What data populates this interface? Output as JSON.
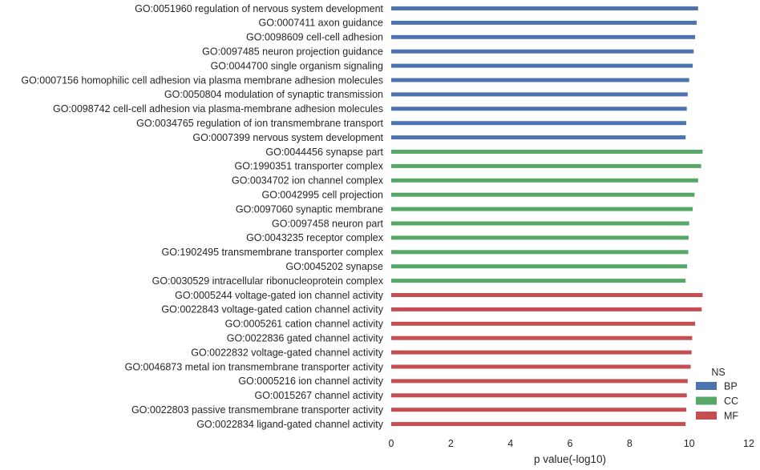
{
  "chart_data": {
    "type": "bar",
    "orientation": "horizontal",
    "xlabel": "p value(-log10)",
    "xlim": [
      0,
      12
    ],
    "xticks": [
      "0",
      "2",
      "4",
      "6",
      "8",
      "10",
      "12"
    ],
    "grid": false,
    "legend": {
      "title": "NS",
      "placement": "bottom-right"
    },
    "series": [
      {
        "name": "BP",
        "color": "#4c72b0"
      },
      {
        "name": "CC",
        "color": "#55a868"
      },
      {
        "name": "MF",
        "color": "#c44e52"
      }
    ],
    "bars": [
      {
        "label": "GO:0051960 regulation of nervous system development",
        "value": 10.3,
        "ns": "BP"
      },
      {
        "label": "GO:0007411 axon guidance",
        "value": 10.25,
        "ns": "BP"
      },
      {
        "label": "GO:0098609 cell-cell adhesion",
        "value": 10.2,
        "ns": "BP"
      },
      {
        "label": "GO:0097485 neuron projection guidance",
        "value": 10.15,
        "ns": "BP"
      },
      {
        "label": "GO:0044700 single organism signaling",
        "value": 10.12,
        "ns": "BP"
      },
      {
        "label": "GO:0007156 homophilic cell adhesion via plasma membrane adhesion molecules",
        "value": 10.0,
        "ns": "BP"
      },
      {
        "label": "GO:0050804 modulation of synaptic transmission",
        "value": 9.95,
        "ns": "BP"
      },
      {
        "label": "GO:0098742 cell-cell adhesion via plasma-membrane adhesion molecules",
        "value": 9.92,
        "ns": "BP"
      },
      {
        "label": "GO:0034765 regulation of ion transmembrane transport",
        "value": 9.9,
        "ns": "BP"
      },
      {
        "label": "GO:0007399 nervous system development",
        "value": 9.88,
        "ns": "BP"
      },
      {
        "label": "GO:0044456 synapse part",
        "value": 10.45,
        "ns": "CC"
      },
      {
        "label": "GO:1990351 transporter complex",
        "value": 10.4,
        "ns": "CC"
      },
      {
        "label": "GO:0034702 ion channel complex",
        "value": 10.3,
        "ns": "CC"
      },
      {
        "label": "GO:0042995 cell projection",
        "value": 10.18,
        "ns": "CC"
      },
      {
        "label": "GO:0097060 synaptic membrane",
        "value": 10.12,
        "ns": "CC"
      },
      {
        "label": "GO:0097458 neuron part",
        "value": 10.0,
        "ns": "CC"
      },
      {
        "label": "GO:0043235 receptor complex",
        "value": 9.98,
        "ns": "CC"
      },
      {
        "label": "GO:1902495 transmembrane transporter complex",
        "value": 9.97,
        "ns": "CC"
      },
      {
        "label": "GO:0045202 synapse",
        "value": 9.93,
        "ns": "CC"
      },
      {
        "label": "GO:0030529 intracellular ribonucleoprotein complex",
        "value": 9.88,
        "ns": "CC"
      },
      {
        "label": "GO:0005244 voltage-gated ion channel activity",
        "value": 10.45,
        "ns": "MF"
      },
      {
        "label": "GO:0022843 voltage-gated cation channel activity",
        "value": 10.42,
        "ns": "MF"
      },
      {
        "label": "GO:0005261 cation channel activity",
        "value": 10.2,
        "ns": "MF"
      },
      {
        "label": "GO:0022836 gated channel activity",
        "value": 10.1,
        "ns": "MF"
      },
      {
        "label": "GO:0022832 voltage-gated channel activity",
        "value": 10.08,
        "ns": "MF"
      },
      {
        "label": "GO:0046873 metal ion transmembrane transporter activity",
        "value": 10.05,
        "ns": "MF"
      },
      {
        "label": "GO:0005216 ion channel activity",
        "value": 9.95,
        "ns": "MF"
      },
      {
        "label": "GO:0015267 channel activity",
        "value": 9.92,
        "ns": "MF"
      },
      {
        "label": "GO:0022803 passive transmembrane transporter activity",
        "value": 9.9,
        "ns": "MF"
      },
      {
        "label": "GO:0022834 ligand-gated channel activity",
        "value": 9.88,
        "ns": "MF"
      }
    ]
  }
}
